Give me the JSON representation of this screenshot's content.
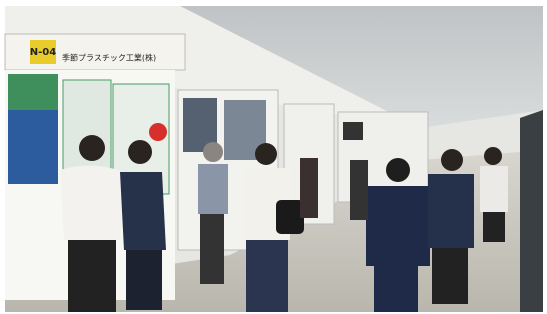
{
  "booth": {
    "number": "N-04",
    "name": "季節プラスチック工業(株)"
  }
}
